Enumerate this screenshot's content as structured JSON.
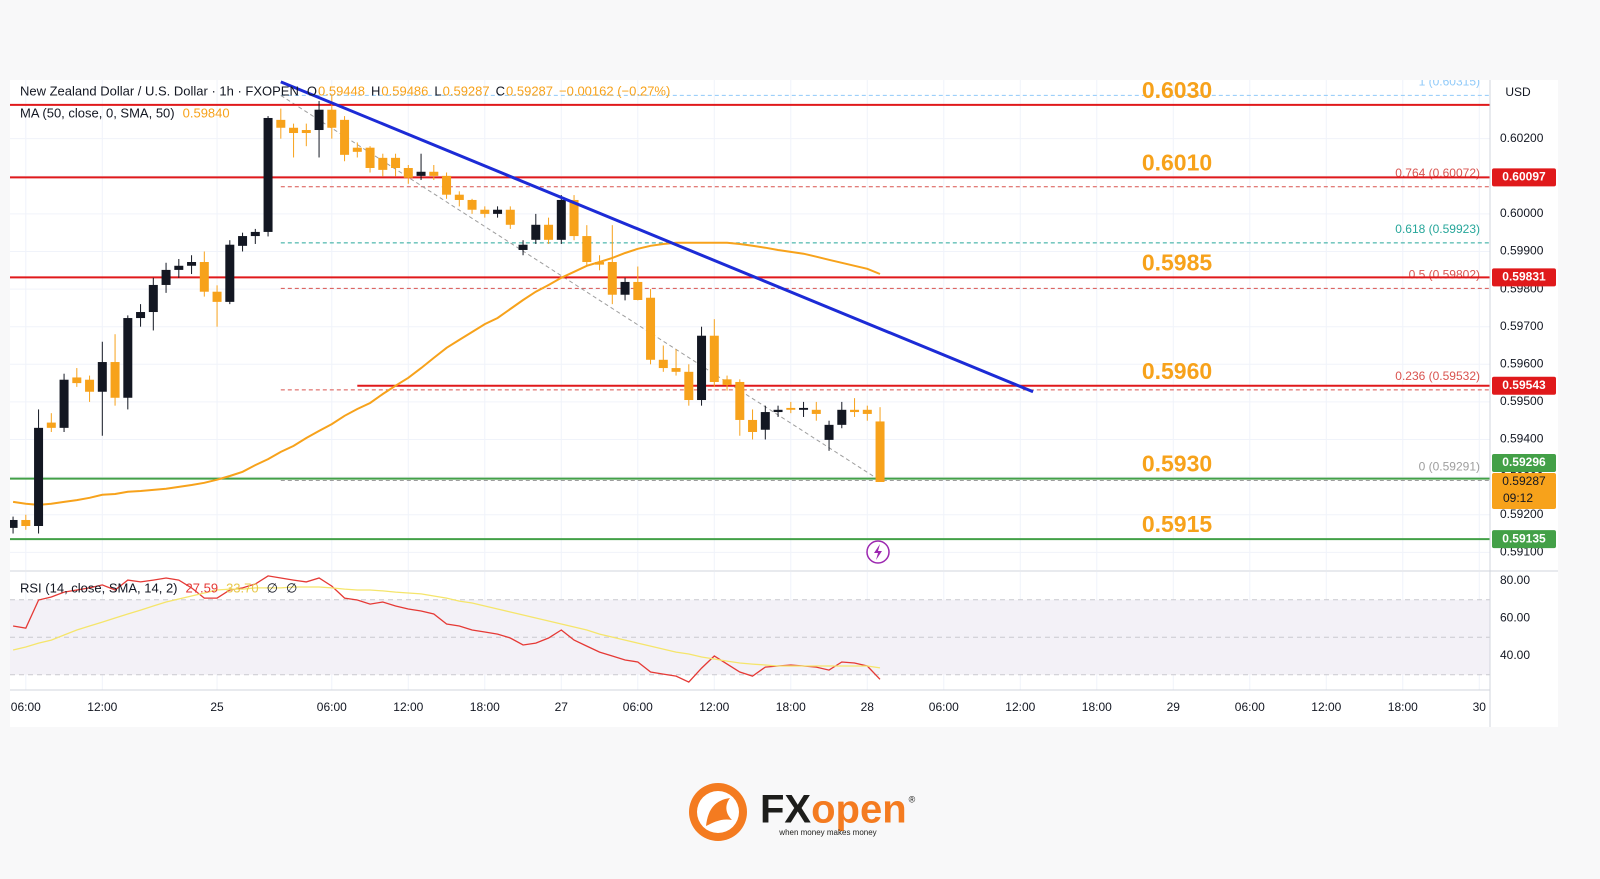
{
  "chart_data": {
    "type": "candlestick",
    "title": "New Zealand Dollar / U.S. Dollar · 1h · FXOPEN",
    "ohlc_letters": [
      "O",
      "H",
      "L",
      "C"
    ],
    "change": "−0.00162 (−0.27%)",
    "currency": "USD",
    "countdown": "09:12",
    "up_color": "#131722",
    "down_color": "#f7a21b",
    "x": [
      0,
      1,
      2,
      3,
      4,
      5,
      6,
      7,
      8,
      9,
      10,
      11,
      12,
      13,
      14,
      15,
      16,
      17,
      18,
      19,
      20,
      21,
      22,
      23,
      24,
      25,
      26,
      27,
      28,
      29,
      30,
      31,
      32,
      33,
      34,
      35,
      36,
      37,
      38,
      39,
      40,
      41,
      42,
      43,
      44,
      45,
      46,
      47,
      48,
      49,
      50,
      51,
      52,
      53,
      54,
      55,
      56,
      57,
      58,
      59,
      60,
      61,
      62,
      63,
      64,
      65,
      66,
      67,
      68
    ],
    "open": [
      0.59165,
      0.59186,
      0.5917,
      0.59445,
      0.59431,
      0.59565,
      0.59559,
      0.59527,
      0.59606,
      0.59511,
      0.59723,
      0.59739,
      0.59811,
      0.59851,
      0.59862,
      0.59872,
      0.59793,
      0.59766,
      0.59915,
      0.59941,
      0.59952,
      0.6025,
      0.60229,
      0.60223,
      0.60223,
      0.60277,
      0.6025,
      0.60176,
      0.60176,
      0.60149,
      0.60149,
      0.60122,
      0.60101,
      0.60112,
      0.60101,
      0.60051,
      0.60037,
      0.60011,
      0.6,
      0.60011,
      0.59904,
      0.59931,
      0.59971,
      0.59931,
      0.60037,
      0.59941,
      0.59872,
      0.59872,
      0.59785,
      0.59819,
      0.59777,
      0.59612,
      0.5959,
      0.5958,
      0.59505,
      0.59676,
      0.5956,
      0.59553,
      0.59452,
      0.59426,
      0.59473,
      0.59484,
      0.59479,
      0.59479,
      0.59399,
      0.59439,
      0.59479,
      0.59479,
      0.59448
    ],
    "high": [
      0.59195,
      0.592,
      0.5948,
      0.5947,
      0.59575,
      0.5959,
      0.5957,
      0.5966,
      0.5968,
      0.5973,
      0.5976,
      0.5983,
      0.5987,
      0.5988,
      0.5989,
      0.599,
      0.5981,
      0.5993,
      0.5995,
      0.5996,
      0.6026,
      0.6028,
      0.6024,
      0.6024,
      0.603,
      0.60316,
      0.6026,
      0.6019,
      0.6018,
      0.6016,
      0.6016,
      0.6013,
      0.6016,
      0.6013,
      0.6011,
      0.6006,
      0.6004,
      0.6002,
      0.6002,
      0.6002,
      0.5993,
      0.6,
      0.5999,
      0.6005,
      0.6005,
      0.5997,
      0.5989,
      0.5997,
      0.5983,
      0.5986,
      0.598,
      0.5965,
      0.5964,
      0.596,
      0.597,
      0.5972,
      0.5957,
      0.5956,
      0.5948,
      0.5949,
      0.5949,
      0.595,
      0.595,
      0.595,
      0.5945,
      0.595,
      0.5951,
      0.5949,
      0.59486
    ],
    "low": [
      0.5915,
      0.5916,
      0.5915,
      0.5942,
      0.5942,
      0.5954,
      0.595,
      0.5941,
      0.5949,
      0.5948,
      0.597,
      0.5969,
      0.5979,
      0.5983,
      0.5984,
      0.5978,
      0.597,
      0.5976,
      0.599,
      0.5992,
      0.5994,
      0.602,
      0.6015,
      0.6018,
      0.6015,
      0.602,
      0.6014,
      0.6015,
      0.6011,
      0.601,
      0.601,
      0.6008,
      0.6009,
      0.6009,
      0.6004,
      0.6002,
      0.6,
      0.5999,
      0.5999,
      0.5996,
      0.5989,
      0.5992,
      0.5992,
      0.5992,
      0.5993,
      0.5986,
      0.5985,
      0.5976,
      0.5977,
      0.5977,
      0.596,
      0.5958,
      0.5957,
      0.5949,
      0.5949,
      0.5954,
      0.5953,
      0.5941,
      0.594,
      0.594,
      0.5946,
      0.5947,
      0.5946,
      0.5945,
      0.5937,
      0.5943,
      0.5946,
      0.5945,
      0.59287
    ],
    "close": [
      0.59186,
      0.5917,
      0.59431,
      0.59431,
      0.59559,
      0.5955,
      0.59527,
      0.59606,
      0.59511,
      0.59723,
      0.59739,
      0.59811,
      0.59851,
      0.59862,
      0.59872,
      0.59793,
      0.59766,
      0.59918,
      0.59941,
      0.59952,
      0.60255,
      0.60229,
      0.60215,
      0.60215,
      0.60277,
      0.60229,
      0.60157,
      0.60165,
      0.60122,
      0.60117,
      0.60122,
      0.60096,
      0.60112,
      0.60101,
      0.60051,
      0.60037,
      0.60011,
      0.6,
      0.60011,
      0.59971,
      0.59918,
      0.59971,
      0.59931,
      0.60037,
      0.59941,
      0.59872,
      0.59865,
      0.59785,
      0.59819,
      0.59771,
      0.59612,
      0.5959,
      0.5958,
      0.59505,
      0.59676,
      0.59553,
      0.59545,
      0.59452,
      0.5942,
      0.59473,
      0.59479,
      0.59479,
      0.59484,
      0.59468,
      0.59439,
      0.59479,
      0.59473,
      0.59468,
      0.59287
    ],
    "ma": {
      "name": "MA (50, close, 0, SMA, 50)",
      "value_label": "0.59840",
      "color": "#f7a21b",
      "values": [
        0.59234,
        0.59229,
        0.59226,
        0.59229,
        0.59234,
        0.59239,
        0.59245,
        0.59253,
        0.59255,
        0.59261,
        0.59263,
        0.59266,
        0.59269,
        0.59274,
        0.59279,
        0.59285,
        0.59293,
        0.59303,
        0.59314,
        0.59332,
        0.59348,
        0.59367,
        0.59383,
        0.59404,
        0.59423,
        0.59441,
        0.59463,
        0.59481,
        0.59497,
        0.59521,
        0.59543,
        0.59564,
        0.5959,
        0.59617,
        0.59644,
        0.59665,
        0.59686,
        0.59707,
        0.59723,
        0.59747,
        0.59771,
        0.59793,
        0.59811,
        0.5983,
        0.59846,
        0.59862,
        0.59872,
        0.59883,
        0.59896,
        0.59907,
        0.59915,
        0.5992,
        0.59923,
        0.59923,
        0.59923,
        0.59923,
        0.59923,
        0.5992,
        0.59915,
        0.5991,
        0.59904,
        0.59899,
        0.59894,
        0.59886,
        0.59878,
        0.5987,
        0.59862,
        0.59854,
        0.5984
      ]
    },
    "xlim": [
      -0.24,
      115.84
    ],
    "ylim": [
      0.59053,
      0.60356
    ],
    "xticks": [
      {
        "value": 1,
        "label": "06:00"
      },
      {
        "value": 7,
        "label": "12:00"
      },
      {
        "value": 16,
        "label": "25"
      },
      {
        "value": 25,
        "label": "06:00"
      },
      {
        "value": 31,
        "label": "12:00"
      },
      {
        "value": 37,
        "label": "18:00"
      },
      {
        "value": 43,
        "label": "27"
      },
      {
        "value": 49,
        "label": "06:00"
      },
      {
        "value": 55,
        "label": "12:00"
      },
      {
        "value": 61,
        "label": "18:00"
      },
      {
        "value": 67,
        "label": "28"
      },
      {
        "value": 73,
        "label": "06:00"
      },
      {
        "value": 79,
        "label": "12:00"
      },
      {
        "value": 85,
        "label": "18:00"
      },
      {
        "value": 91,
        "label": "29"
      },
      {
        "value": 97,
        "label": "06:00"
      },
      {
        "value": 103,
        "label": "12:00"
      },
      {
        "value": 109,
        "label": "18:00"
      },
      {
        "value": 115,
        "label": "30"
      }
    ],
    "yticks": [
      {
        "value": 0.591,
        "label": "0.59100"
      },
      {
        "value": 0.592,
        "label": "0.59200"
      },
      {
        "value": 0.593,
        "label": "0.59300"
      },
      {
        "value": 0.594,
        "label": "0.59400"
      },
      {
        "value": 0.595,
        "label": "0.59500"
      },
      {
        "value": 0.596,
        "label": "0.59600"
      },
      {
        "value": 0.597,
        "label": "0.59700"
      },
      {
        "value": 0.598,
        "label": "0.59800"
      },
      {
        "value": 0.599,
        "label": "0.59900"
      },
      {
        "value": 0.6,
        "label": "0.60000"
      },
      {
        "value": 0.601,
        "label": "0.60100"
      },
      {
        "value": 0.602,
        "label": "0.60200"
      }
    ],
    "grid": true,
    "levels": [
      {
        "label": "0.6030",
        "value": 0.6029,
        "color": "#e0191b",
        "tag": false
      },
      {
        "label": "0.6010",
        "value": 0.60097,
        "color": "#e0191b",
        "tag": true
      },
      {
        "label": "0.5985",
        "value": 0.59831,
        "color": "#e0191b",
        "tag": true
      },
      {
        "label": "0.5960",
        "value": 0.59543,
        "color": "#e0191b",
        "tag": true,
        "from": 27
      },
      {
        "label": "0.5930",
        "value": 0.59296,
        "color": "#43a047",
        "tag": true
      },
      {
        "label": "0.5915",
        "value": 0.59135,
        "color": "#43a047",
        "tag": true
      }
    ],
    "fib": {
      "from": 21,
      "to": 68,
      "levels": [
        {
          "label": "1 (0.60315)",
          "value": 0.60315,
          "color": "#90caf9"
        },
        {
          "label": "0.764 (0.60072)",
          "value": 0.60072,
          "color": "#d9534f"
        },
        {
          "label": "0.618 (0.59923)",
          "value": 0.59923,
          "color": "#26a69a"
        },
        {
          "label": "0.5 (0.59802)",
          "value": 0.59802,
          "color": "#d9534f"
        },
        {
          "label": "0.236 (0.59532)",
          "value": 0.59532,
          "color": "#d9534f"
        },
        {
          "label": "0 (0.59291)",
          "value": 0.59291,
          "color": "#9e9e9e"
        }
      ]
    },
    "trend_line": {
      "from": [
        21,
        0.60351
      ],
      "to": [
        80,
        0.59527
      ],
      "color": "#1c2bd6"
    },
    "rsi": {
      "name": "RSI (14, close, SMA, 14, 2)",
      "legend_labels": [
        "27.59",
        "33.70",
        "∅",
        "∅"
      ],
      "ylim": [
        21.9,
        84.8
      ],
      "yticks": [
        {
          "value": 40,
          "label": "40.00"
        },
        {
          "value": 60,
          "label": "60.00"
        },
        {
          "value": 80,
          "label": "80.00"
        }
      ],
      "band": [
        30,
        70
      ],
      "middle": 50,
      "series": [
        {
          "color": "#e53935",
          "values": [
            56.0,
            54.9,
            69.9,
            71.5,
            74.1,
            75.2,
            76.3,
            77.9,
            75.2,
            80.5,
            79.5,
            80.5,
            81.6,
            80.5,
            76.3,
            70.9,
            70.9,
            75.2,
            76.3,
            78.4,
            82.7,
            81.6,
            80.5,
            79.5,
            81.6,
            77.3,
            70.9,
            69.9,
            67.7,
            68.8,
            66.7,
            65.1,
            64.0,
            62.4,
            57.1,
            56.0,
            53.9,
            52.8,
            51.7,
            49.6,
            45.9,
            46.9,
            49.6,
            53.9,
            48.5,
            45.3,
            42.1,
            40.0,
            37.9,
            36.8,
            31.5,
            30.4,
            29.3,
            26.1,
            33.6,
            40.0,
            35.7,
            31.5,
            29.3,
            34.1,
            34.7,
            35.2,
            34.7,
            34.1,
            32.5,
            36.8,
            36.3,
            34.7,
            27.59
          ]
        },
        {
          "color": "#f5e56b",
          "values": [
            43.2,
            44.8,
            46.9,
            48.5,
            51.2,
            53.9,
            56.0,
            58.1,
            60.3,
            62.4,
            64.5,
            66.7,
            68.8,
            70.4,
            72.0,
            73.6,
            75.2,
            75.7,
            75.7,
            76.3,
            76.3,
            76.3,
            76.8,
            76.8,
            76.8,
            76.3,
            75.7,
            75.2,
            75.2,
            74.7,
            74.1,
            73.6,
            73.1,
            72.0,
            70.9,
            69.3,
            68.3,
            66.7,
            65.1,
            63.5,
            61.9,
            60.3,
            58.7,
            57.1,
            55.5,
            53.9,
            51.7,
            50.1,
            48.5,
            46.9,
            45.3,
            43.7,
            42.1,
            41.1,
            39.5,
            38.4,
            37.3,
            36.3,
            35.7,
            35.2,
            34.7,
            34.7,
            34.7,
            34.7,
            34.7,
            34.7,
            34.7,
            34.7,
            33.7
          ]
        }
      ]
    }
  },
  "logo": {
    "brand_a": "FX",
    "brand_b": "open",
    "registered": "®",
    "tagline": "when money makes money"
  }
}
